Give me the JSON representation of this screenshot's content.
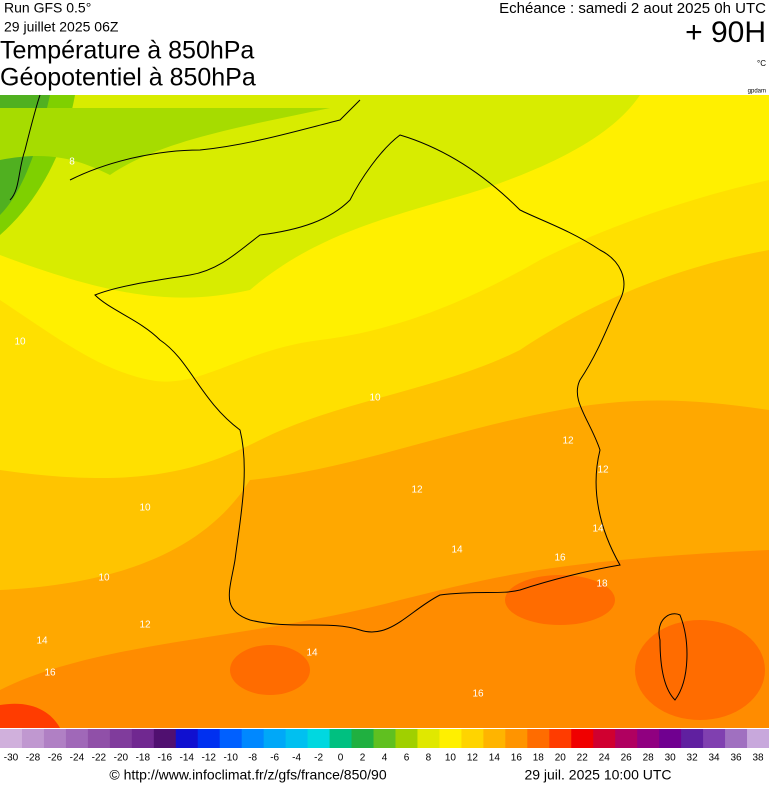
{
  "header": {
    "run": "Run GFS 0.5°",
    "run_date": "29 juillet 2025 06Z",
    "title_line1": "Température à 850hPa",
    "title_line2": "Géopotentiel à 850hPa",
    "forecast": "Echéance : samedi 2 aout 2025 0h UTC",
    "lead": "+ 90H",
    "unit": "°C",
    "credit": "gpdam"
  },
  "map": {
    "contour_labels": [
      8,
      10,
      10,
      10,
      10,
      12,
      12,
      12,
      12,
      14,
      14,
      14,
      14,
      16,
      16,
      16,
      18
    ]
  },
  "scale": {
    "labels": [
      -30,
      -28,
      -26,
      -24,
      -22,
      -20,
      -18,
      -16,
      -14,
      -12,
      -10,
      -8,
      -6,
      -4,
      -2,
      0,
      2,
      4,
      6,
      8,
      10,
      12,
      14,
      16,
      18,
      20,
      22,
      24,
      26,
      28,
      30,
      32,
      34,
      36,
      38
    ],
    "colors": [
      "#d0b0dc",
      "#c098d0",
      "#b080c4",
      "#a068b8",
      "#9050a8",
      "#803c9c",
      "#702890",
      "#501070",
      "#1010d0",
      "#0030f0",
      "#0060ff",
      "#0088ff",
      "#00a8f8",
      "#00c0f0",
      "#00d8e0",
      "#00c080",
      "#20b040",
      "#60c020",
      "#a0d000",
      "#e0e800",
      "#fff000",
      "#ffd400",
      "#ffb400",
      "#ff9400",
      "#ff6c00",
      "#ff3c00",
      "#f00000",
      "#d00030",
      "#b00060",
      "#900080",
      "#700090",
      "#6020a0",
      "#8040b0",
      "#a070c0",
      "#c8a8dc"
    ]
  },
  "footer": {
    "url": "© http://www.infoclimat.fr/z/gfs/france/850/90",
    "timestamp": "29 juil. 2025 10:00 UTC"
  }
}
